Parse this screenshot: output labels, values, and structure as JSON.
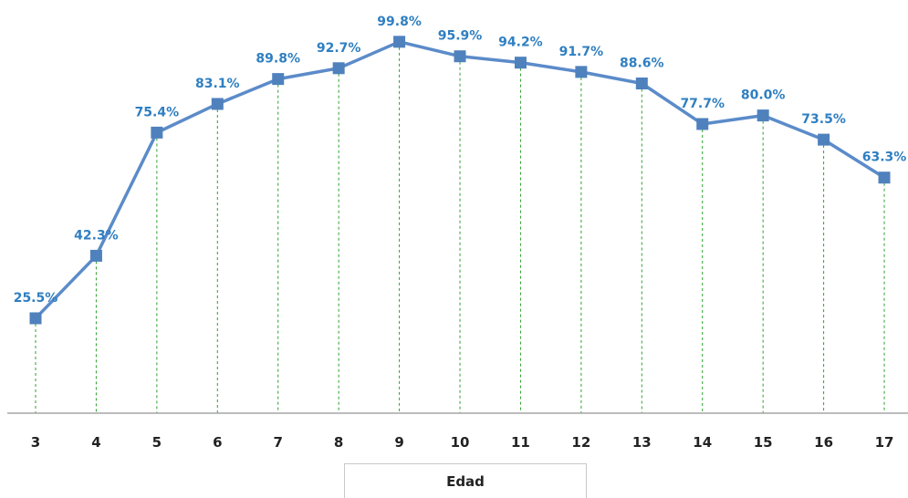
{
  "chart_data": {
    "type": "line",
    "categories": [
      "3",
      "4",
      "5",
      "6",
      "7",
      "8",
      "9",
      "10",
      "11",
      "12",
      "13",
      "14",
      "15",
      "16",
      "17"
    ],
    "series": [
      {
        "values": [
          25.5,
          42.3,
          75.4,
          83.1,
          89.8,
          92.7,
          99.8,
          95.9,
          94.2,
          91.7,
          88.6,
          77.7,
          80.0,
          73.5,
          63.3
        ],
        "data_labels": [
          "25.5%",
          "42.3%",
          "75.4%",
          "83.1%",
          "89.8%",
          "92.7%",
          "99.8%",
          "95.9%",
          "94.2%",
          "91.7%",
          "88.6%",
          "77.7%",
          "80.0%",
          "73.5%",
          "63.3%"
        ]
      }
    ],
    "xlabel": "Edad",
    "ylabel": "",
    "title": "",
    "ylim": [
      0,
      100
    ],
    "grid": false,
    "drop_lines": true,
    "colors": {
      "line": "#5b8bc9",
      "marker": "#4f81bd",
      "label": "#2f7fc1",
      "drop_line": "#2ca02c",
      "axis": "#a6a6a6"
    }
  }
}
